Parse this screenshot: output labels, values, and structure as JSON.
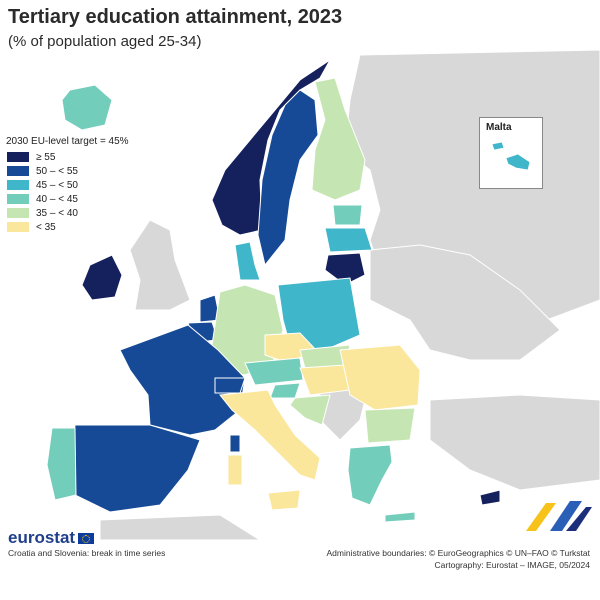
{
  "title": "Tertiary education attainment, 2023",
  "subtitle": "(% of population aged 25-34)",
  "legend": {
    "title": "2030 EU-level target = 45%",
    "items": [
      {
        "label": "≥ 55",
        "color": "#15215c"
      },
      {
        "label": "50 – < 55",
        "color": "#164a96"
      },
      {
        "label": "45 – < 50",
        "color": "#3fb6c9"
      },
      {
        "label": "40 – < 45",
        "color": "#72cdbb"
      },
      {
        "label": "35 – < 40",
        "color": "#c5e6b2"
      },
      {
        "label": "< 35",
        "color": "#fbe79c"
      }
    ]
  },
  "inset": {
    "label": "Malta"
  },
  "logo": {
    "text": "eurostat"
  },
  "footnote": "Croatia and Slovenia: break in time series",
  "source": {
    "line1": "Administrative boundaries: © EuroGeographics © UN–FAO © Turkstat",
    "line2": "Cartography: Eurostat – IMAGE, 05/2024"
  },
  "colors": {
    "non_eu": "#d8d8d8",
    "sea": "#ffffff",
    "border": "#ffffff"
  },
  "regions": [
    {
      "name": "Iceland",
      "class": "40 – < 45"
    },
    {
      "name": "Norway",
      "class": "≥ 55"
    },
    {
      "name": "Sweden",
      "class": "50 – < 55"
    },
    {
      "name": "Finland",
      "class": "35 – < 40"
    },
    {
      "name": "Estonia",
      "class": "40 – < 45"
    },
    {
      "name": "Latvia",
      "class": "45 – < 50"
    },
    {
      "name": "Lithuania",
      "class": "≥ 55"
    },
    {
      "name": "Ireland",
      "class": "≥ 55"
    },
    {
      "name": "Denmark",
      "class": "45 – < 50"
    },
    {
      "name": "Netherlands",
      "class": "50 – < 55"
    },
    {
      "name": "Belgium",
      "class": "50 – < 55"
    },
    {
      "name": "Luxembourg",
      "class": "≥ 55"
    },
    {
      "name": "France",
      "class": "50 – < 55"
    },
    {
      "name": "Spain",
      "class": "50 – < 55"
    },
    {
      "name": "Portugal",
      "class": "40 – < 45"
    },
    {
      "name": "Germany",
      "class": "35 – < 40"
    },
    {
      "name": "Poland",
      "class": "45 – < 50"
    },
    {
      "name": "Czechia",
      "class": "< 35"
    },
    {
      "name": "Slovakia",
      "class": "35 – < 40"
    },
    {
      "name": "Austria",
      "class": "40 – < 45"
    },
    {
      "name": "Switzerland",
      "class": "50 – < 55"
    },
    {
      "name": "Slovenia",
      "class": "40 – < 45"
    },
    {
      "name": "Hungary",
      "class": "< 35"
    },
    {
      "name": "Croatia",
      "class": "35 – < 40"
    },
    {
      "name": "Romania",
      "class": "< 35"
    },
    {
      "name": "Bulgaria",
      "class": "35 – < 40"
    },
    {
      "name": "Italy",
      "class": "< 35"
    },
    {
      "name": "Sardinia",
      "class": "< 35"
    },
    {
      "name": "Sicily",
      "class": "< 35"
    },
    {
      "name": "Corsica",
      "class": "50 – < 55"
    },
    {
      "name": "Greece",
      "class": "40 – < 45"
    },
    {
      "name": "Cyprus",
      "class": "≥ 55"
    },
    {
      "name": "Malta",
      "class": "45 – < 50"
    }
  ]
}
